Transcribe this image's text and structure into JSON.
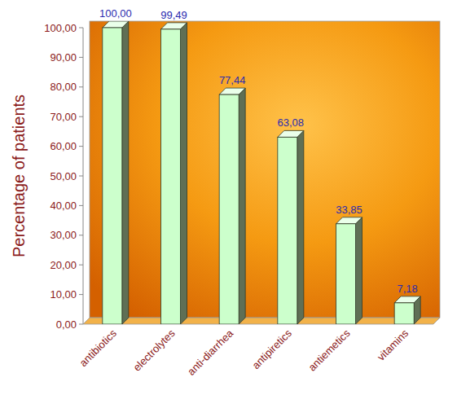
{
  "chart_data": {
    "type": "bar",
    "y_label": "Percentage of patients",
    "categories": [
      "antibiotics",
      "electrolytes",
      "anti-diarrhea",
      "antipiretics",
      "antiemetics",
      "vitamins"
    ],
    "values": [
      100.0,
      99.49,
      77.44,
      63.08,
      33.85,
      7.18
    ],
    "value_labels": [
      "100,00",
      "99,49",
      "77,44",
      "63,08",
      "33,85",
      "7,18"
    ],
    "color": "#ccffcc",
    "ylim": [
      0,
      100
    ],
    "yticks": [
      {
        "value": 0,
        "label": "0,00"
      },
      {
        "value": 10,
        "label": "10,00"
      },
      {
        "value": 20,
        "label": "20,00"
      },
      {
        "value": 30,
        "label": "30,00"
      },
      {
        "value": 40,
        "label": "40,00"
      },
      {
        "value": 50,
        "label": "50,00"
      },
      {
        "value": 60,
        "label": "60,00"
      },
      {
        "value": 70,
        "label": "70,00"
      },
      {
        "value": 80,
        "label": "80,00"
      },
      {
        "value": 90,
        "label": "90,00"
      },
      {
        "value": 100,
        "label": "100,00"
      }
    ],
    "grid": false,
    "data_labels": true
  }
}
